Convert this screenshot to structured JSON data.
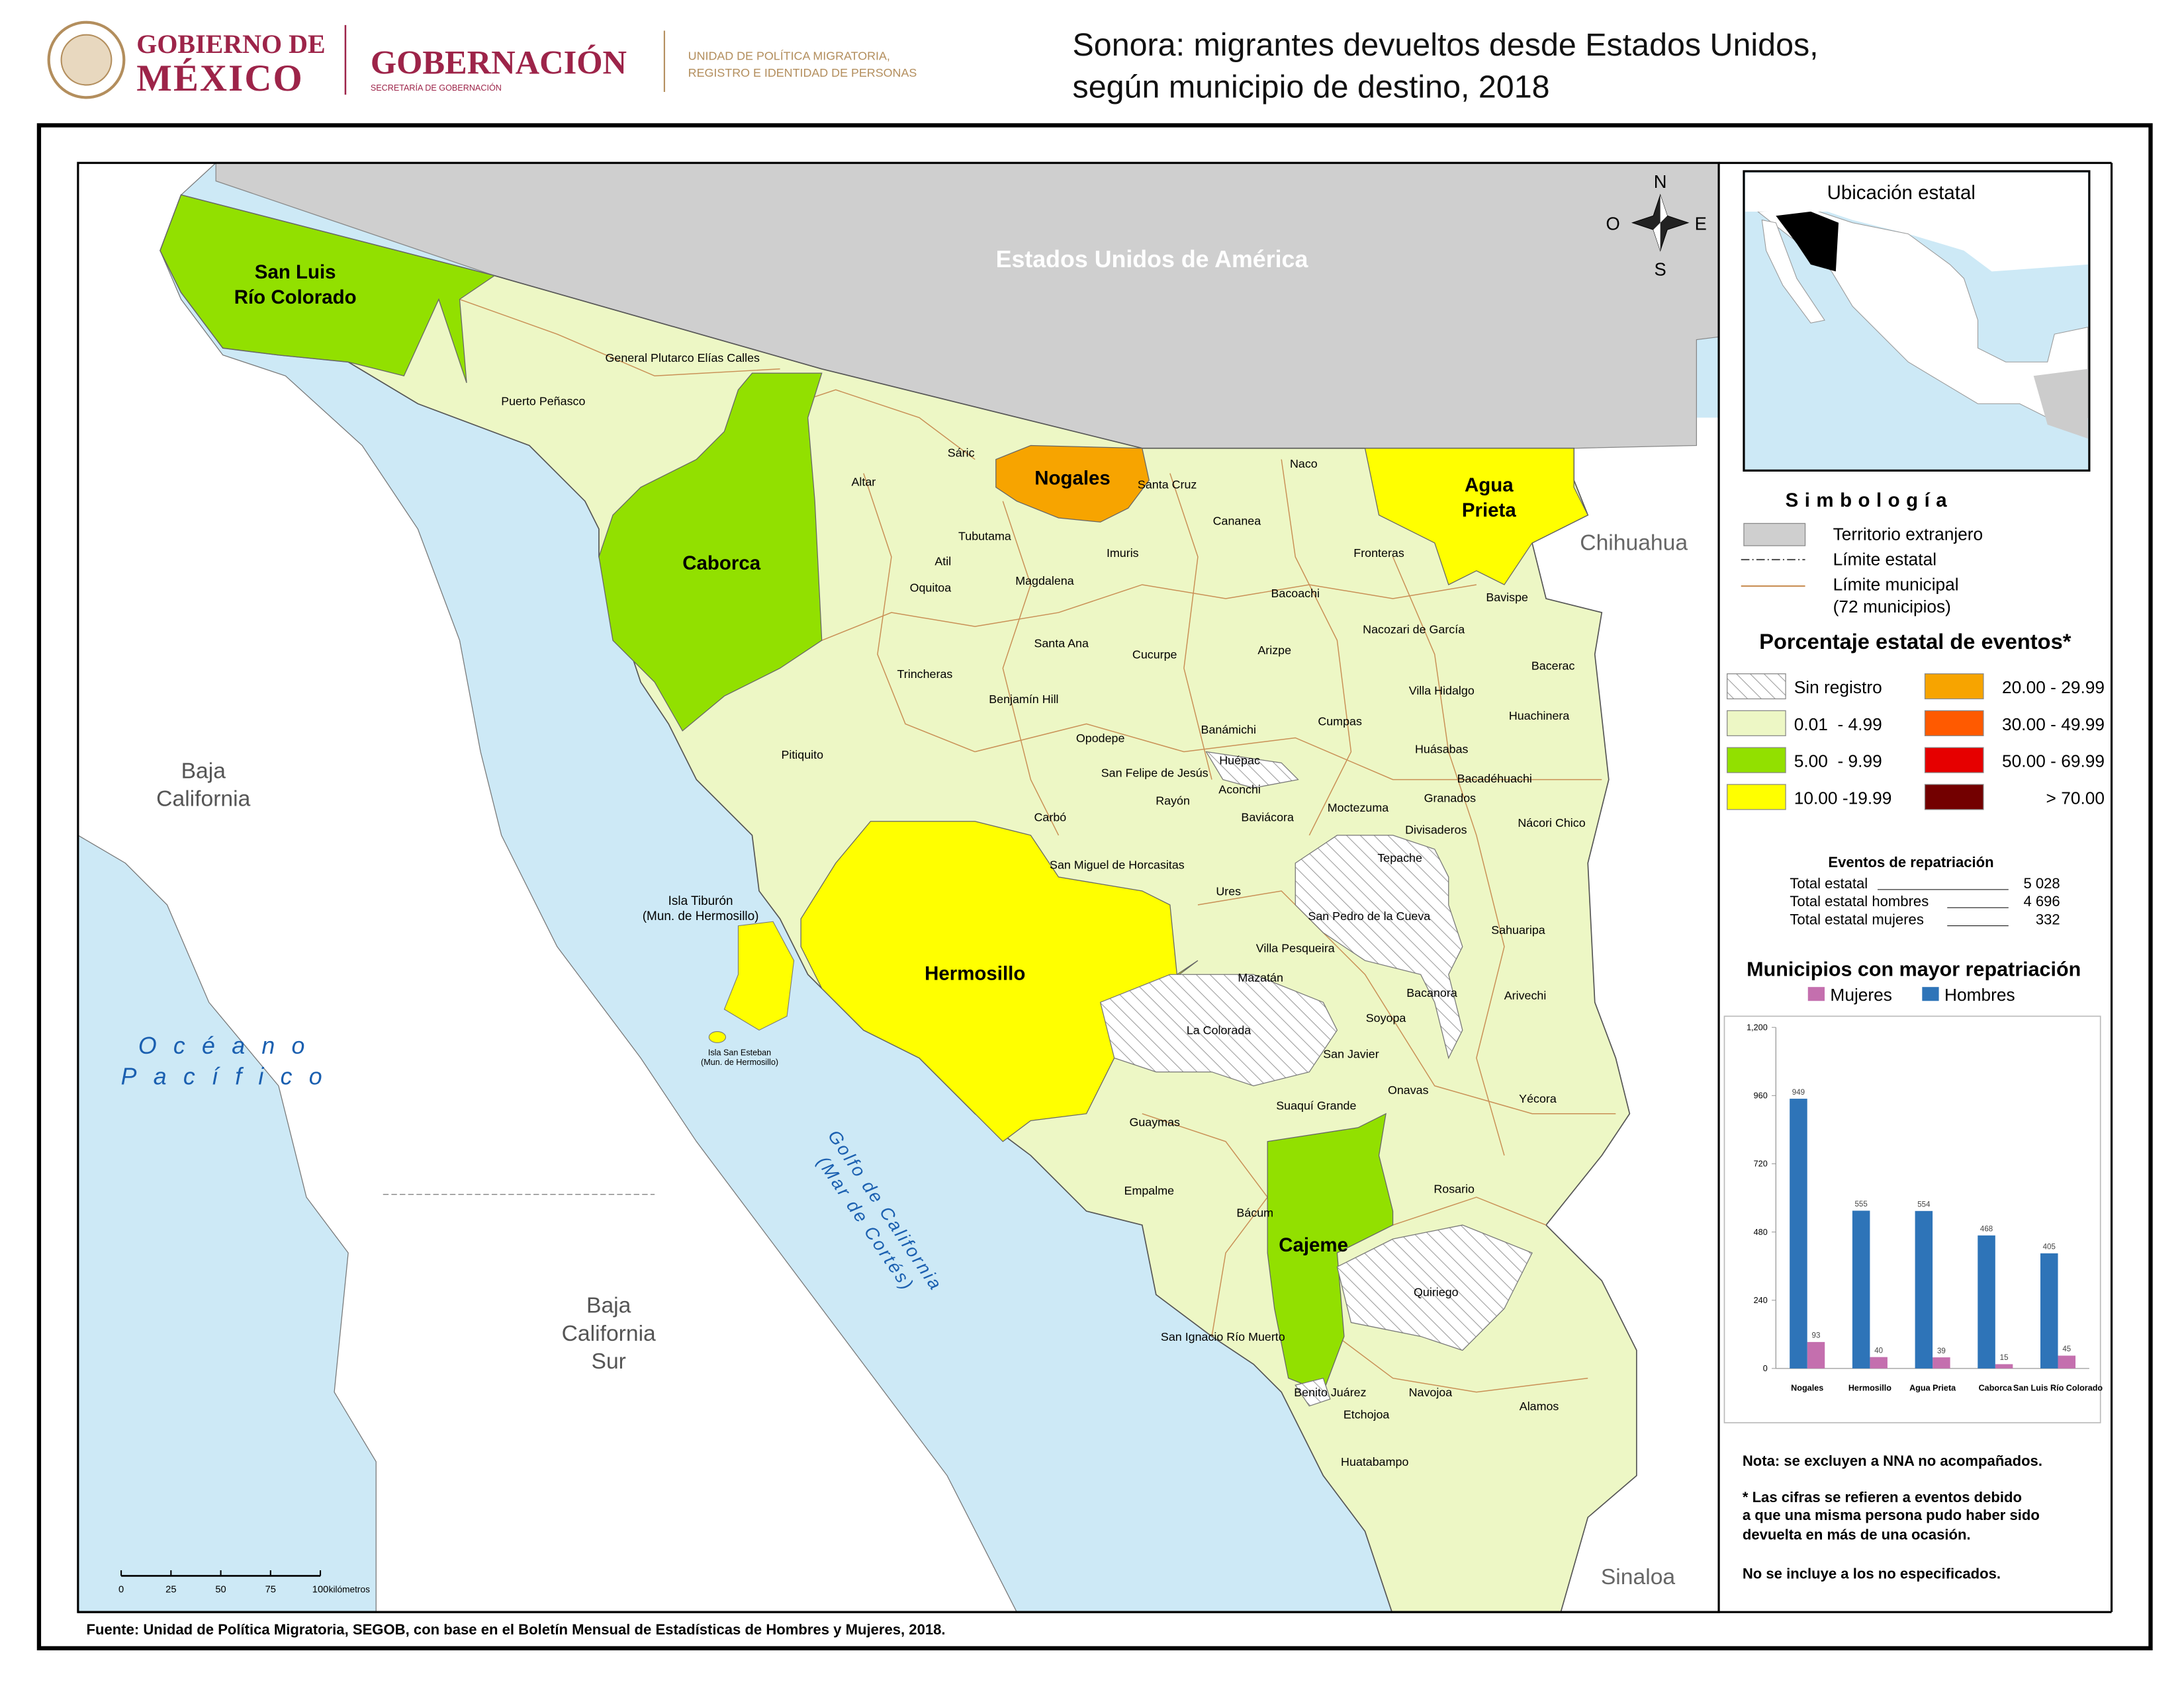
{
  "header": {
    "gov_line1": "GOBIERNO DE",
    "gov_line2": "MÉXICO",
    "ministry": "GOBERNACIÓN",
    "ministry_sub": "SECRETARÍA DE GOBERNACIÓN",
    "unit_lines": [
      "UNIDAD DE POLÍTICA MIGRATORIA,",
      "REGISTRO E IDENTIDAD DE PERSONAS"
    ],
    "title_lines": [
      "Sonora: migrantes devueltos desde Estados Unidos,",
      "según municipio de destino, 2018"
    ]
  },
  "map": {
    "regions": [
      {
        "lines": [
          "Estados Unidos de América"
        ]
      },
      {
        "lines": [
          "Chihuahua"
        ]
      },
      {
        "lines": [
          "Sinaloa"
        ]
      },
      {
        "lines": [
          "Baja",
          "California"
        ]
      },
      {
        "lines": [
          "Baja",
          "California",
          "Sur"
        ]
      }
    ],
    "ocean": [
      "Océano",
      "Pacífico"
    ],
    "gulf": [
      "Golfo de California",
      "(Mar de Cortés)"
    ],
    "highlighted": [
      {
        "lines": [
          "San Luis",
          "Río Colorado"
        ]
      },
      {
        "lines": [
          "Caborca"
        ]
      },
      {
        "lines": [
          "Nogales"
        ]
      },
      {
        "lines": [
          "Agua",
          "Prieta"
        ]
      },
      {
        "lines": [
          "Hermosillo"
        ]
      },
      {
        "lines": [
          "Cajeme"
        ]
      }
    ],
    "islands": [
      {
        "lines": [
          "Isla Tiburón",
          "(Mun. de Hermosillo)"
        ]
      },
      {
        "lines": [
          "Isla San Esteban",
          "(Mun. de Hermosillo)"
        ]
      }
    ],
    "municipalities": [
      "General Plutarco Elías Calles",
      "Puerto Peñasco",
      "Altar",
      "Sáric",
      "Santa Cruz",
      "Naco",
      "Tubutama",
      "Cananea",
      "Atil",
      "Imuris",
      "Fronteras",
      "Magdalena",
      "Oquitoa",
      "Bacoachi",
      "Bavispe",
      "Nacozari de García",
      "Santa Ana",
      "Cucurpe",
      "Arizpe",
      "Trincheras",
      "Bacerac",
      "Benjamín Hill",
      "Villa Hidalgo",
      "Opodepe",
      "Banámichi",
      "Cumpas",
      "Huachinera",
      "Huépac",
      "Huásabas",
      "Pitiquito",
      "San Felipe de Jesús",
      "Bacadéhuachi",
      "Aconchi",
      "Granados",
      "Rayón",
      "Moctezuma",
      "Carbó",
      "Baviácora",
      "Nácori Chico",
      "Divisaderos",
      "Tepache",
      "San Miguel de Horcasitas",
      "Ures",
      "San Pedro de la Cueva",
      "Sahuaripa",
      "Villa Pesqueira",
      "Mazatán",
      "Bacanora",
      "Arivechi",
      "Soyopa",
      "La Colorada",
      "San Javier",
      "Onavas",
      "Yécora",
      "Suaquí Grande",
      "Guaymas",
      "Rosario",
      "Empalme",
      "Bácum",
      "Quiriego",
      "San Ignacio Río Muerto",
      "Benito Juárez",
      "Navojoa",
      "Alamos",
      "Etchojoa",
      "Huatabampo"
    ],
    "compass": {
      "n": "N",
      "w": "O",
      "e": "E",
      "s": "S"
    },
    "scale_bar": {
      "ticks": [
        0,
        25,
        50,
        75,
        100
      ],
      "unit": "kilómetros"
    }
  },
  "inset": {
    "title": "Ubicación estatal"
  },
  "legend": {
    "title": "Simbología",
    "items": [
      {
        "lines": [
          "Territorio extranjero"
        ]
      },
      {
        "lines": [
          "Límite estatal"
        ]
      },
      {
        "lines": [
          "Límite municipal",
          "(72 municipios)"
        ]
      }
    ],
    "classes_title": "Porcentaje estatal de eventos*",
    "classes": [
      {
        "label": "Sin registro"
      },
      {
        "label": "0.01  - 4.99",
        "color": "#edf7c5"
      },
      {
        "label": "5.00  - 9.99",
        "color": "#92e000"
      },
      {
        "label": "10.00 -19.99",
        "color": "#ffff00"
      },
      {
        "label": "20.00 - 29.99",
        "color": "#f7a400"
      },
      {
        "label": "30.00 - 49.99",
        "color": "#ff5a00"
      },
      {
        "label": "50.00 - 69.99",
        "color": "#e60000"
      },
      {
        "label": "> 70.00",
        "color": "#730000"
      }
    ]
  },
  "totals": {
    "title": "Eventos de repatriación",
    "rows": [
      [
        "Total estatal",
        "5 028"
      ],
      [
        "Total estatal hombres",
        "4 696"
      ],
      [
        "Total estatal mujeres",
        "332"
      ]
    ]
  },
  "chart_data": {
    "type": "bar",
    "title": "Municipios con mayor repatriación",
    "categories": [
      "Nogales",
      "Hermosillo",
      "Agua Prieta",
      "Caborca",
      "San Luis Río Colorado"
    ],
    "series": [
      {
        "name": "Mujeres",
        "color": "#c46fae",
        "values": [
          93,
          40,
          39,
          15,
          45
        ]
      },
      {
        "name": "Hombres",
        "color": "#2e74b8",
        "values": [
          949,
          555,
          554,
          468,
          405
        ]
      }
    ],
    "ylim": [
      0,
      1200
    ],
    "yticks": [
      0,
      240,
      480,
      720,
      960,
      {
        "value": 1200,
        "label": "1,200"
      }
    ],
    "grid": false
  },
  "notes": [
    "Nota: se excluyen a NNA no acompañados.",
    "* Las cifras se refieren a eventos debido",
    "a que una misma persona pudo haber sido",
    "devuelta en más de una ocasión.",
    "No se incluye a los no especificados."
  ],
  "source": "Fuente: Unidad de Política Migratoria, SEGOB, con base en el Boletín Mensual de Estadísticas de Hombres y Mujeres, 2018."
}
